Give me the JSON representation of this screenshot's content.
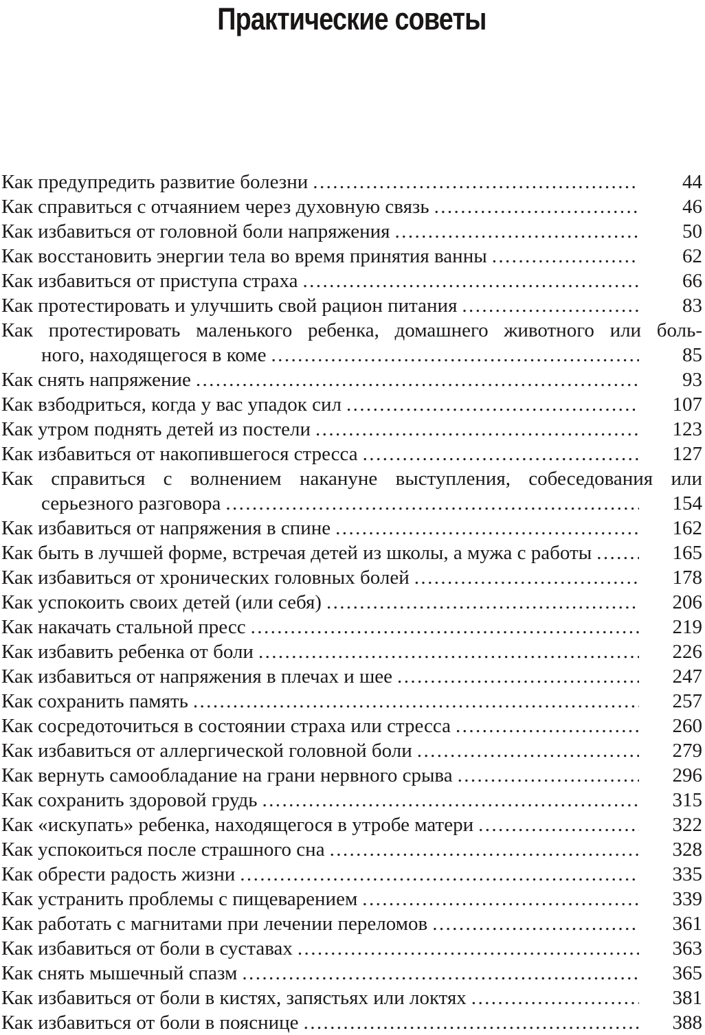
{
  "page": {
    "title": "Практические советы",
    "background_color": "#ffffff",
    "text_color": "#1c1919",
    "title_color": "#191616"
  },
  "toc": {
    "entries": [
      {
        "lines": [
          "Как предупредить развитие болезни"
        ],
        "page": "44"
      },
      {
        "lines": [
          "Как справиться с отчаянием через духовную связь"
        ],
        "page": "46"
      },
      {
        "lines": [
          "Как избавиться от головной боли напряжения"
        ],
        "page": "50"
      },
      {
        "lines": [
          "Как восстановить энергии тела во время принятия ванны"
        ],
        "page": "62"
      },
      {
        "lines": [
          "Как избавиться от приступа страха"
        ],
        "page": "66"
      },
      {
        "lines": [
          "Как протестировать и улучшить свой рацион питания"
        ],
        "page": "83"
      },
      {
        "lines": [
          "Как протестировать маленького ребенка, домашнего животного или боль-",
          "ного, находящегося в коме"
        ],
        "page": "85"
      },
      {
        "lines": [
          "Как снять напряжение"
        ],
        "page": "93"
      },
      {
        "lines": [
          "Как взбодриться, когда у вас упадок сил"
        ],
        "page": "107"
      },
      {
        "lines": [
          "Как утром поднять детей из постели"
        ],
        "page": "123"
      },
      {
        "lines": [
          "Как избавиться от накопившегося стресса"
        ],
        "page": "127"
      },
      {
        "lines": [
          "Как справиться с волнением накануне выступления, собеседования или",
          "серьезного разговора"
        ],
        "page": "154"
      },
      {
        "lines": [
          "Как избавиться от напряжения в спине"
        ],
        "page": "162"
      },
      {
        "lines": [
          "Как быть в лучшей форме, встречая детей из школы, а мужа с работы"
        ],
        "page": "165"
      },
      {
        "lines": [
          "Как избавиться от хронических головных болей"
        ],
        "page": "178"
      },
      {
        "lines": [
          "Как успокоить своих детей (или себя)"
        ],
        "page": "206"
      },
      {
        "lines": [
          "Как накачать стальной пресс"
        ],
        "page": "219"
      },
      {
        "lines": [
          "Как избавить ребенка от боли"
        ],
        "page": "226"
      },
      {
        "lines": [
          "Как избавиться от напряжения в плечах и шее"
        ],
        "page": "247"
      },
      {
        "lines": [
          "Как сохранить память"
        ],
        "page": "257"
      },
      {
        "lines": [
          "Как сосредоточиться в состоянии страха или стресса"
        ],
        "page": "260"
      },
      {
        "lines": [
          "Как избавиться от аллергической головной боли"
        ],
        "page": "279"
      },
      {
        "lines": [
          "Как вернуть самообладание на грани нервного срыва"
        ],
        "page": "296"
      },
      {
        "lines": [
          "Как сохранить здоровой грудь"
        ],
        "page": "315"
      },
      {
        "lines": [
          "Как «искупать» ребенка, находящегося в утробе матери"
        ],
        "page": "322"
      },
      {
        "lines": [
          "Как успокоиться после страшного сна"
        ],
        "page": "328"
      },
      {
        "lines": [
          "Как обрести радость жизни"
        ],
        "page": "335"
      },
      {
        "lines": [
          "Как устранить проблемы с пищеварением"
        ],
        "page": "339"
      },
      {
        "lines": [
          "Как работать с магнитами при лечении переломов"
        ],
        "page": "361"
      },
      {
        "lines": [
          "Как избавиться от боли в суставах"
        ],
        "page": "363"
      },
      {
        "lines": [
          "Как снять мышечный спазм"
        ],
        "page": "365"
      },
      {
        "lines": [
          "Как избавиться от боли в кистях, запястьях или локтях"
        ],
        "page": "381"
      },
      {
        "lines": [
          "Как избавиться от боли в пояснице"
        ],
        "page": "388"
      }
    ]
  }
}
